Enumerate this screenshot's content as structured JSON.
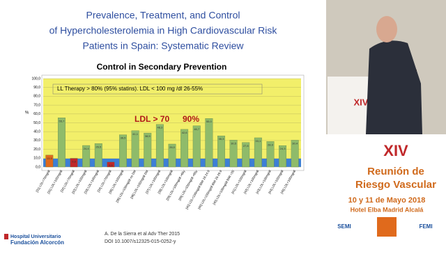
{
  "slide": {
    "heading": [
      "Prevalence, Treatment, and Control",
      "of Hypercholesterolemia in High Cardiovascular Risk",
      "Patients in Spain: Systematic Review"
    ],
    "citation": [
      "A. De la Sierra et al Adv Ther 2015",
      "DOI 10.1007/s12325-015-0252-y"
    ],
    "hospital": [
      "Hospital Universitario",
      "Fundación Alcorcón"
    ]
  },
  "event": {
    "title": [
      "XIV",
      "Reunión de",
      "Riesgo Vascular"
    ],
    "date": "10 y 11 de Mayo 2018",
    "venue": "Hotel Elba Madrid Alcalá",
    "logos": [
      "SEMI",
      "FEMI"
    ]
  },
  "chart_data": {
    "type": "bar",
    "title": "Control in Secondary Prevention",
    "y_label": "%",
    "annotations": [
      "LL Therapy > 80% (95% statins). LDL < 100 mg /dl  26-55%",
      "LDL > 70",
      "90%"
    ],
    "categories": [
      "[31] LDL<70mg/dl",
      "[31] LDL<100mg/dl",
      "[32] LDL<70mg/dl",
      "[32] LDL<100mg/dl",
      "[33] LDL<100mg/dl",
      "[34] LDL<70mg/dl",
      "[35] LDL<100mg/dl",
      "[36] LDL<100mg/dl no DM",
      "[36] LDL<100mg/dl DM",
      "[37] LDL<100mg/dl",
      "[38] LDL<100mg/dl",
      "[39] LDL<100mg/dl >65y",
      "[39] LDL<100mg/dl <65y",
      "[40] LDL<100mg/dl BMI 18-24.9",
      "[40] LDL<100mg/dl BMI 25-29.9",
      "[40] LDL<100mg/dl BMI >30",
      "[41] LDL<100mg/dl",
      "[42] LDL<100mg/dl",
      "[43] LDL<100mg/dl",
      "[44] LDL<100mg/dl",
      "[45] LDL<100mg/dl"
    ],
    "values": [
      13.5,
      55.7,
      9.8,
      24.4,
      26.5,
      5.6,
      36.5,
      41.1,
      38.5,
      48.3,
      26.0,
      42.6,
      46.7,
      55.0,
      35.3,
      30.5,
      27.8,
      33.1,
      28.9,
      24.3,
      30.4
    ],
    "value_labels": [
      "13,5",
      "55,7",
      "9,8",
      "24,4",
      "26,5",
      "5,6",
      "36,5",
      "41,1",
      "38,5",
      "48,3",
      "26,0",
      "42,6",
      "46,7",
      "55,0",
      "35,3",
      "30,5",
      "27,8",
      "33,1",
      "28,9",
      "24,3",
      "30,4"
    ],
    "colors": [
      "#e06a1c",
      "#8fbb6a",
      "#c0282a",
      "#8fbb6a",
      "#8fbb6a",
      "#c0282a",
      "#8fbb6a",
      "#8fbb6a",
      "#8fbb6a",
      "#8fbb6a",
      "#8fbb6a",
      "#8fbb6a",
      "#8fbb6a",
      "#8fbb6a",
      "#8fbb6a",
      "#8fbb6a",
      "#8fbb6a",
      "#8fbb6a",
      "#8fbb6a",
      "#8fbb6a",
      "#8fbb6a"
    ],
    "ylim": [
      0,
      100
    ],
    "yticks": [
      {
        "value": 0,
        "label": "0,0"
      },
      {
        "value": 10,
        "label": "10,0"
      },
      {
        "value": 20,
        "label": "20,0"
      },
      {
        "value": 30,
        "label": "30,0"
      },
      {
        "value": 40,
        "label": "40,0"
      },
      {
        "value": 50,
        "label": "50,0"
      },
      {
        "value": 60,
        "label": "60,0"
      },
      {
        "value": 70,
        "label": "70,0"
      },
      {
        "value": 80,
        "label": "80,0"
      },
      {
        "value": 90,
        "label": "90,0"
      },
      {
        "value": 100,
        "label": "100,0"
      }
    ],
    "grid": true
  }
}
